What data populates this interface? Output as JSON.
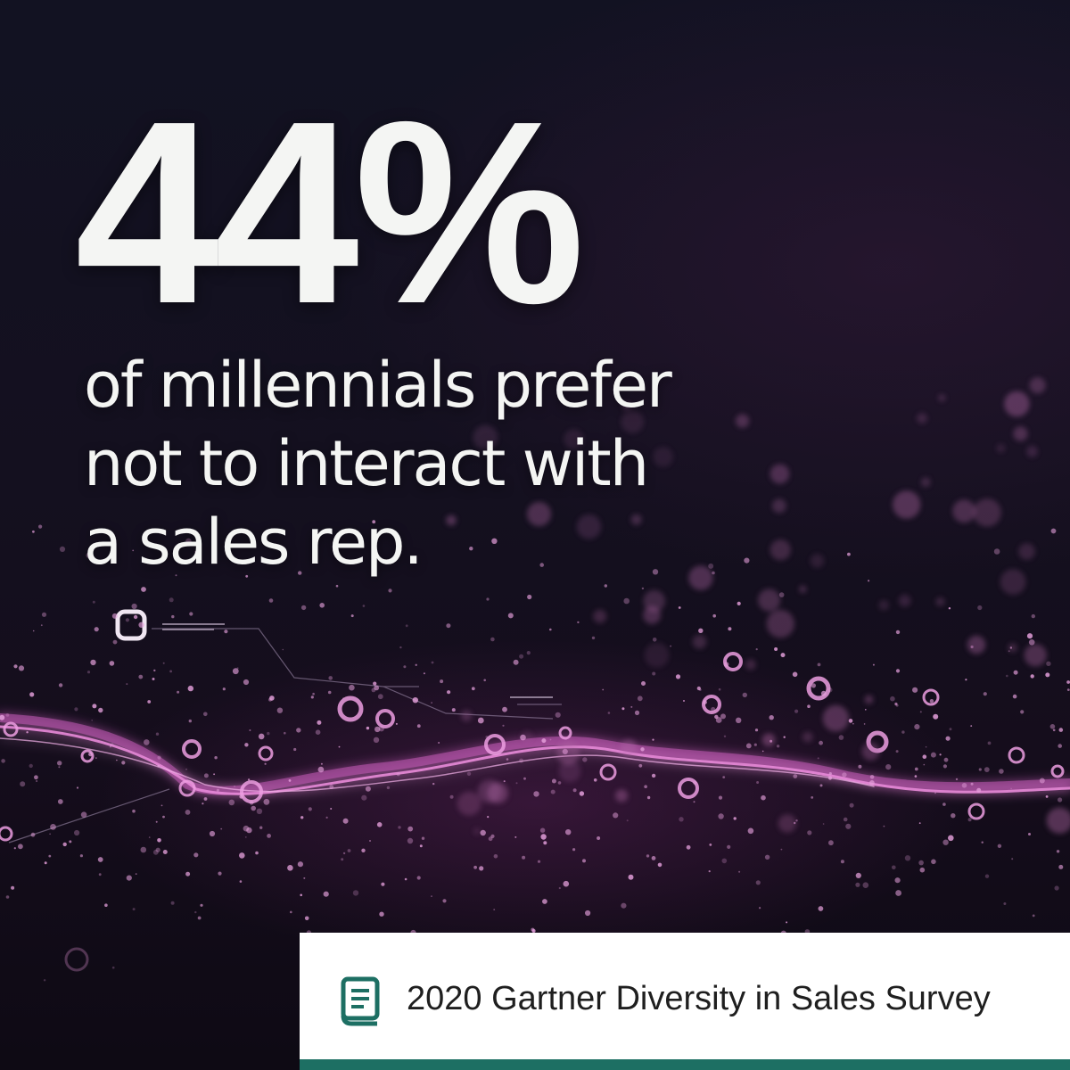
{
  "headline": {
    "stat": "44%",
    "caption_lines": [
      "of millennials prefer",
      "not to interact with",
      "a sales rep."
    ]
  },
  "source": {
    "icon": "book-icon",
    "text": "2020 Gartner Diversity in Sales Survey"
  },
  "colors": {
    "background": "#0f0e1c",
    "text": "#f4f5f3",
    "particles": "#e47fd6",
    "accent_bar": "#1d6f63",
    "icon": "#1d6f63"
  }
}
